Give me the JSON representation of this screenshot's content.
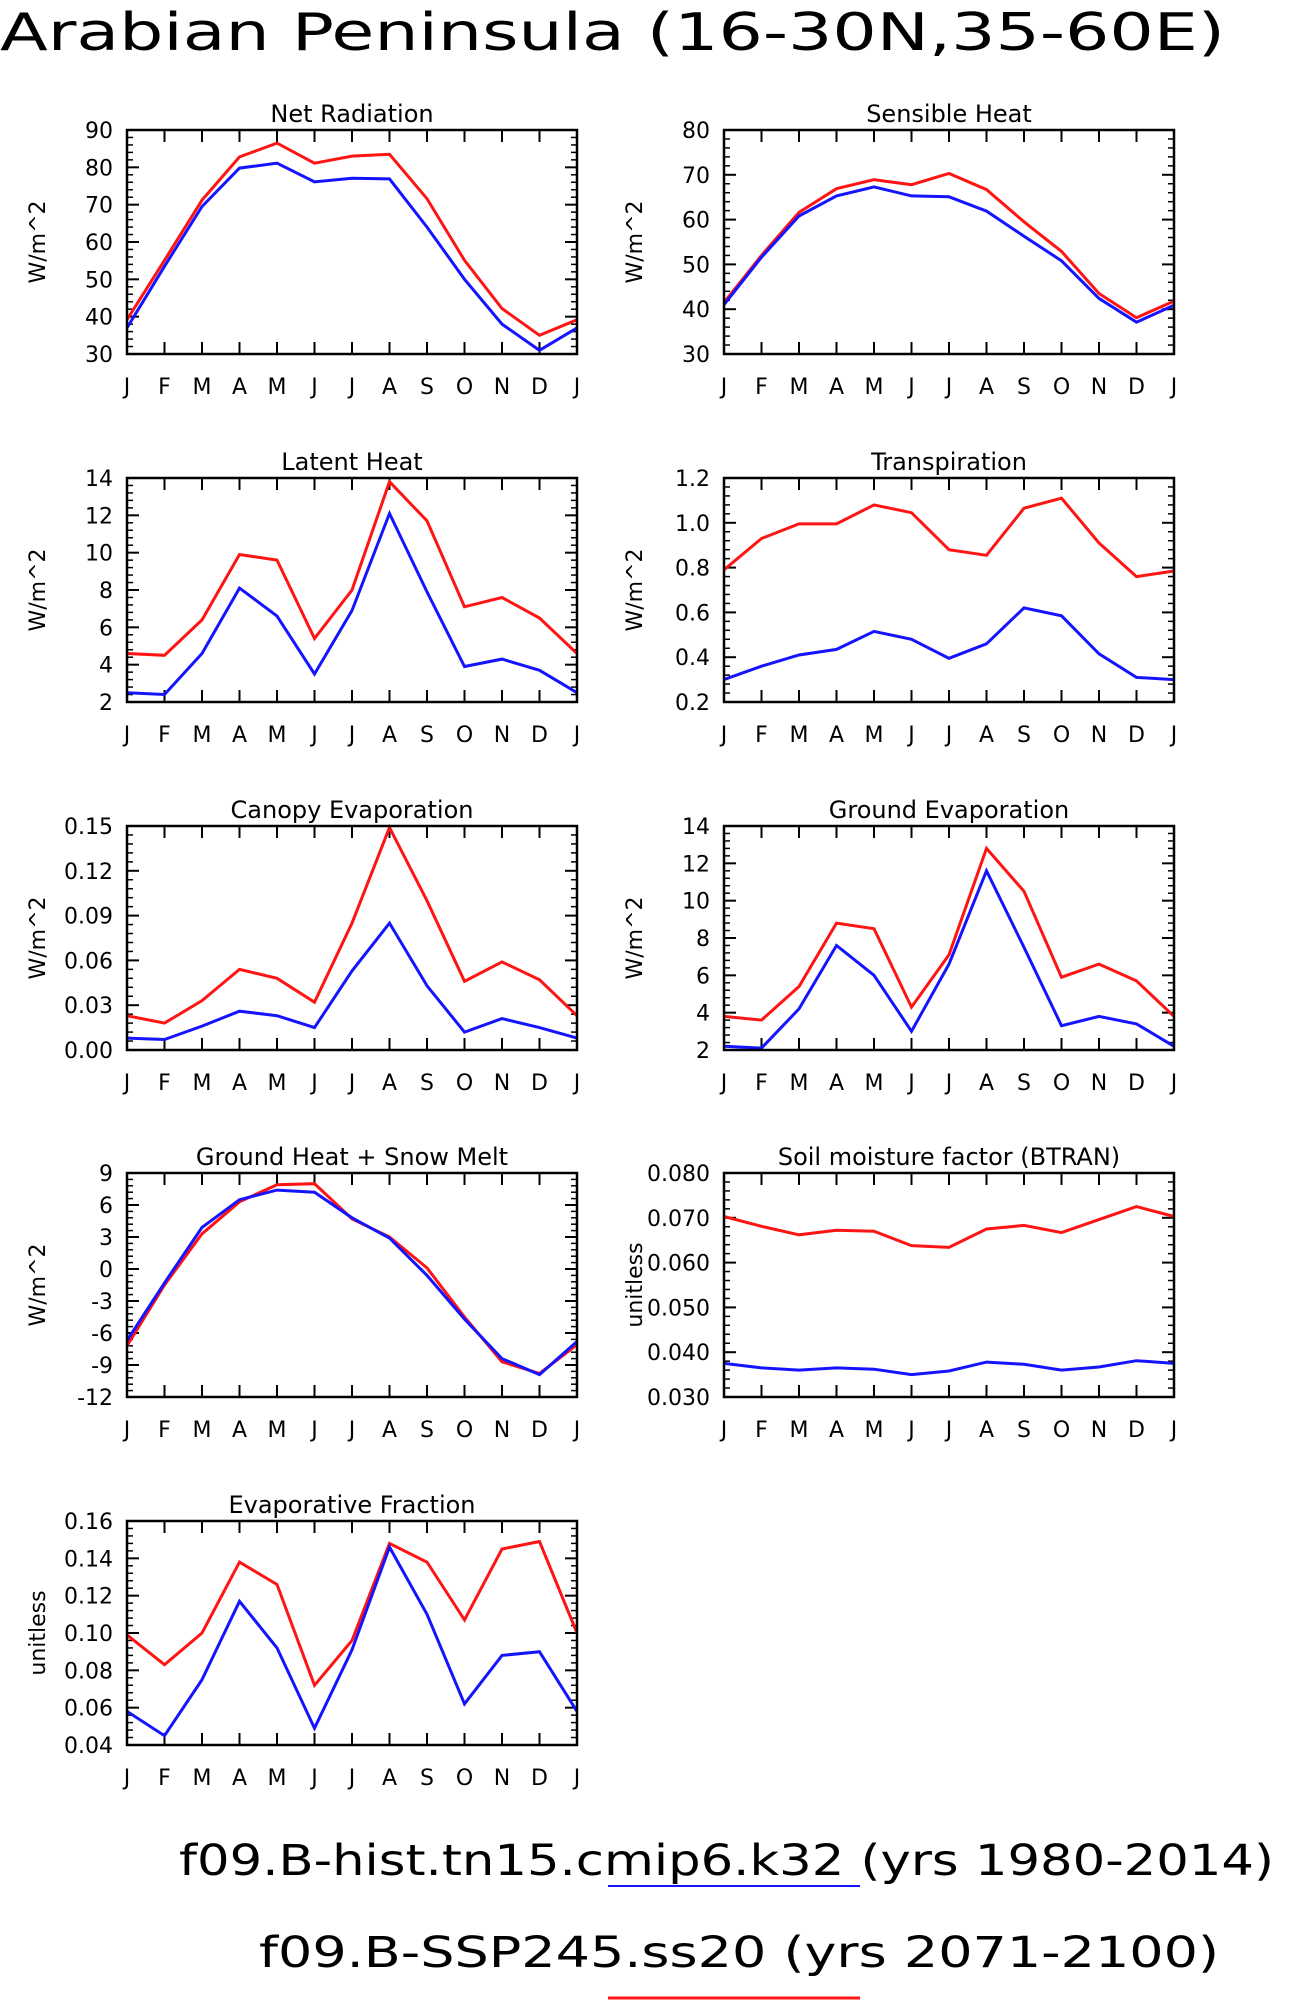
{
  "page_title": "Arabian Peninsula (16-30N,35-60E)",
  "legend": [
    {
      "label": "f09.B-hist.tn15.cmip6.k32 (yrs 1980-2014)",
      "color": "#1414ff"
    },
    {
      "label": "f09.B-SSP245.ss20 (yrs 2071-2100)",
      "color": "#ff1414"
    }
  ],
  "colors": {
    "hist": "#1414ff",
    "future": "#ff1414"
  },
  "chart_data": [
    {
      "type": "line",
      "title": "Net Radiation",
      "ylabel": "W/m^2",
      "xlabel": "",
      "categories": [
        "J",
        "F",
        "M",
        "A",
        "M",
        "J",
        "J",
        "A",
        "S",
        "O",
        "N",
        "D",
        "J"
      ],
      "ylim": [
        30,
        90
      ],
      "yticks": [
        "30",
        "40",
        "50",
        "60",
        "70",
        "80",
        "90"
      ],
      "yticks_values": [
        30,
        40,
        50,
        60,
        70,
        80,
        90
      ],
      "series": [
        {
          "key": "hist",
          "values": [
            37,
            53.5,
            69.5,
            79.8,
            81.1,
            76.1,
            77.1,
            76.9,
            64,
            50,
            38,
            31,
            37
          ]
        },
        {
          "key": "future",
          "values": [
            39.2,
            55.1,
            71.2,
            82.8,
            86.5,
            81.1,
            83,
            83.5,
            71.6,
            55.1,
            42.2,
            35,
            39.2
          ]
        }
      ]
    },
    {
      "type": "line",
      "title": "Sensible Heat",
      "ylabel": "W/m^2",
      "xlabel": "",
      "categories": [
        "J",
        "F",
        "M",
        "A",
        "M",
        "J",
        "J",
        "A",
        "S",
        "O",
        "N",
        "D",
        "J"
      ],
      "ylim": [
        30,
        80
      ],
      "yticks": [
        "30",
        "40",
        "50",
        "60",
        "70",
        "80"
      ],
      "yticks_values": [
        30,
        40,
        50,
        60,
        70,
        80
      ],
      "series": [
        {
          "key": "hist",
          "values": [
            41,
            51.6,
            60.8,
            65.3,
            67.3,
            65.3,
            65.1,
            61.9,
            56.3,
            50.8,
            42.4,
            37.1,
            40.9
          ]
        },
        {
          "key": "future",
          "values": [
            41.5,
            52,
            61.6,
            66.9,
            68.9,
            67.8,
            70.3,
            66.7,
            59.5,
            52.9,
            43.5,
            38.1,
            41.8
          ]
        }
      ]
    },
    {
      "type": "line",
      "title": "Latent Heat",
      "ylabel": "W/m^2",
      "xlabel": "",
      "categories": [
        "J",
        "F",
        "M",
        "A",
        "M",
        "J",
        "J",
        "A",
        "S",
        "O",
        "N",
        "D",
        "J"
      ],
      "ylim": [
        2,
        14
      ],
      "yticks": [
        "2",
        "4",
        "6",
        "8",
        "10",
        "12",
        "14"
      ],
      "yticks_values": [
        2,
        4,
        6,
        8,
        10,
        12,
        14
      ],
      "series": [
        {
          "key": "hist",
          "values": [
            2.5,
            2.4,
            4.6,
            8.1,
            6.6,
            3.5,
            6.9,
            12.1,
            7.9,
            3.9,
            4.3,
            3.7,
            2.5
          ]
        },
        {
          "key": "future",
          "values": [
            4.6,
            4.5,
            6.4,
            9.9,
            9.6,
            5.4,
            8,
            13.8,
            11.7,
            7.1,
            7.6,
            6.5,
            4.6
          ]
        }
      ]
    },
    {
      "type": "line",
      "title": "Transpiration",
      "ylabel": "W/m^2",
      "xlabel": "",
      "categories": [
        "J",
        "F",
        "M",
        "A",
        "M",
        "J",
        "J",
        "A",
        "S",
        "O",
        "N",
        "D",
        "J"
      ],
      "ylim": [
        0.2,
        1.2
      ],
      "yticks": [
        "0.2",
        "0.4",
        "0.6",
        "0.8",
        "1.0",
        "1.2"
      ],
      "yticks_values": [
        0.2,
        0.4,
        0.6,
        0.8,
        1.0,
        1.2
      ],
      "series": [
        {
          "key": "hist",
          "values": [
            0.3,
            0.36,
            0.41,
            0.435,
            0.515,
            0.48,
            0.395,
            0.46,
            0.62,
            0.585,
            0.415,
            0.31,
            0.3
          ]
        },
        {
          "key": "future",
          "values": [
            0.79,
            0.93,
            0.995,
            0.995,
            1.08,
            1.045,
            0.88,
            0.855,
            1.065,
            1.11,
            0.91,
            0.76,
            0.785
          ]
        }
      ]
    },
    {
      "type": "line",
      "title": "Canopy Evaporation",
      "ylabel": "W/m^2",
      "xlabel": "",
      "categories": [
        "J",
        "F",
        "M",
        "A",
        "M",
        "J",
        "J",
        "A",
        "S",
        "O",
        "N",
        "D",
        "J"
      ],
      "ylim": [
        0.0,
        0.15
      ],
      "yticks": [
        "0.00",
        "0.03",
        "0.06",
        "0.09",
        "0.12",
        "0.15"
      ],
      "yticks_values": [
        0,
        0.03,
        0.06,
        0.09,
        0.12,
        0.15
      ],
      "series": [
        {
          "key": "hist",
          "values": [
            0.008,
            0.007,
            0.016,
            0.026,
            0.023,
            0.015,
            0.053,
            0.085,
            0.043,
            0.012,
            0.021,
            0.015,
            0.008
          ]
        },
        {
          "key": "future",
          "values": [
            0.023,
            0.018,
            0.033,
            0.054,
            0.048,
            0.032,
            0.085,
            0.149,
            0.1,
            0.046,
            0.059,
            0.047,
            0.023
          ]
        }
      ]
    },
    {
      "type": "line",
      "title": "Ground Evaporation",
      "ylabel": "W/m^2",
      "xlabel": "",
      "categories": [
        "J",
        "F",
        "M",
        "A",
        "M",
        "J",
        "J",
        "A",
        "S",
        "O",
        "N",
        "D",
        "J"
      ],
      "ylim": [
        2,
        14
      ],
      "yticks": [
        "2",
        "4",
        "6",
        "8",
        "10",
        "12",
        "14"
      ],
      "yticks_values": [
        2,
        4,
        6,
        8,
        10,
        12,
        14
      ],
      "series": [
        {
          "key": "hist",
          "values": [
            2.2,
            2.1,
            4.2,
            7.6,
            6,
            3,
            6.6,
            11.6,
            7.5,
            3.3,
            3.8,
            3.4,
            2.2
          ]
        },
        {
          "key": "future",
          "values": [
            3.8,
            3.6,
            5.4,
            8.8,
            8.5,
            4.3,
            7.1,
            12.8,
            10.5,
            5.9,
            6.6,
            5.7,
            3.8
          ]
        }
      ]
    },
    {
      "type": "line",
      "title": "Ground Heat + Snow Melt",
      "ylabel": "W/m^2",
      "xlabel": "",
      "categories": [
        "J",
        "F",
        "M",
        "A",
        "M",
        "J",
        "J",
        "A",
        "S",
        "O",
        "N",
        "D",
        "J"
      ],
      "ylim": [
        -12,
        9
      ],
      "yticks": [
        "-12",
        "-9",
        "-6",
        "-3",
        "0",
        "3",
        "6",
        "9"
      ],
      "yticks_values": [
        -12,
        -9,
        -6,
        -3,
        0,
        3,
        6,
        9
      ],
      "series": [
        {
          "key": "hist",
          "values": [
            -6.7,
            -1.3,
            3.9,
            6.5,
            7.4,
            7.2,
            4.8,
            2.9,
            -0.6,
            -4.7,
            -8.4,
            -9.9,
            -6.8
          ]
        },
        {
          "key": "future",
          "values": [
            -7.2,
            -1.5,
            3.3,
            6.3,
            7.9,
            8,
            4.7,
            3,
            0.1,
            -4.5,
            -8.7,
            -9.8,
            -7.1
          ]
        }
      ]
    },
    {
      "type": "line",
      "title": "Soil moisture factor (BTRAN)",
      "ylabel": "unitless",
      "xlabel": "",
      "categories": [
        "J",
        "F",
        "M",
        "A",
        "M",
        "J",
        "J",
        "A",
        "S",
        "O",
        "N",
        "D",
        "J"
      ],
      "ylim": [
        0.03,
        0.08
      ],
      "yticks": [
        "0.030",
        "0.040",
        "0.050",
        "0.060",
        "0.070",
        "0.080"
      ],
      "yticks_values": [
        0.03,
        0.04,
        0.05,
        0.06,
        0.07,
        0.08
      ],
      "series": [
        {
          "key": "hist",
          "values": [
            0.0375,
            0.0365,
            0.036,
            0.0365,
            0.0362,
            0.035,
            0.0358,
            0.0378,
            0.0373,
            0.036,
            0.0367,
            0.0381,
            0.0375
          ]
        },
        {
          "key": "future",
          "values": [
            0.0703,
            0.0681,
            0.0662,
            0.0672,
            0.067,
            0.0638,
            0.0634,
            0.0675,
            0.0683,
            0.0667,
            0.0696,
            0.0725,
            0.0703
          ]
        }
      ]
    },
    {
      "type": "line",
      "title": "Evaporative Fraction",
      "ylabel": "unitless",
      "xlabel": "",
      "categories": [
        "J",
        "F",
        "M",
        "A",
        "M",
        "J",
        "J",
        "A",
        "S",
        "O",
        "N",
        "D",
        "J"
      ],
      "ylim": [
        0.04,
        0.16
      ],
      "yticks": [
        "0.04",
        "0.06",
        "0.08",
        "0.10",
        "0.12",
        "0.14",
        "0.16"
      ],
      "yticks_values": [
        0.04,
        0.06,
        0.08,
        0.1,
        0.12,
        0.14,
        0.16
      ],
      "series": [
        {
          "key": "hist",
          "values": [
            0.058,
            0.045,
            0.075,
            0.117,
            0.092,
            0.049,
            0.091,
            0.146,
            0.11,
            0.062,
            0.088,
            0.09,
            0.058
          ]
        },
        {
          "key": "future",
          "values": [
            0.099,
            0.083,
            0.1,
            0.138,
            0.126,
            0.072,
            0.096,
            0.148,
            0.138,
            0.107,
            0.145,
            0.149,
            0.1
          ]
        }
      ]
    }
  ]
}
